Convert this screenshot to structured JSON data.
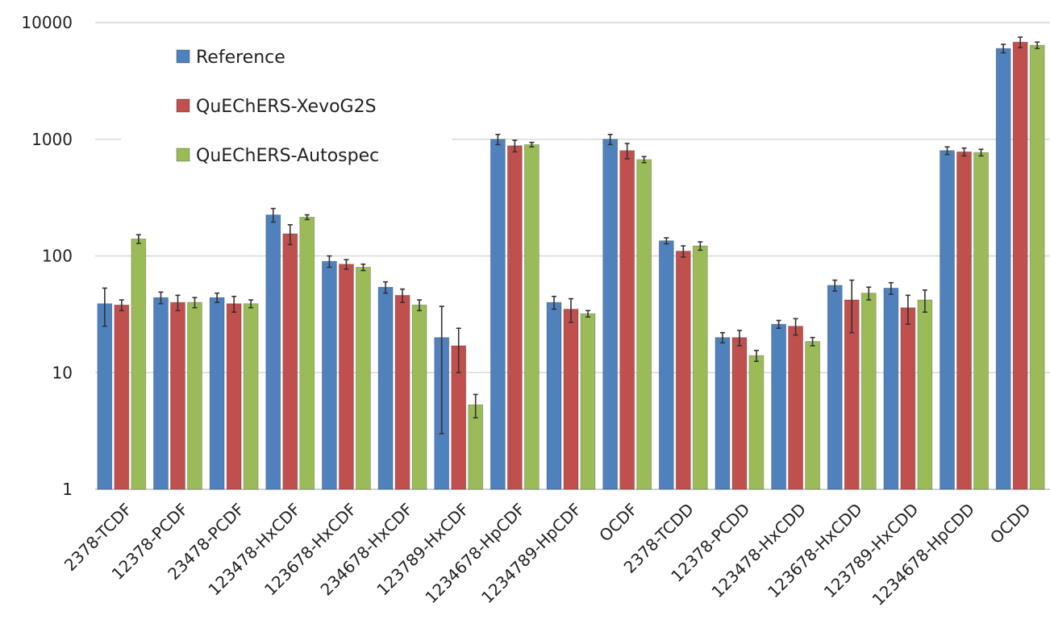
{
  "chart_data": {
    "type": "bar",
    "y_scale": "log",
    "ylim": [
      1,
      10000
    ],
    "y_ticks": [
      1,
      10,
      100,
      1000,
      10000
    ],
    "y_tick_labels": [
      "1",
      "10",
      "100",
      "1000",
      "10000"
    ],
    "grid": true,
    "legend_position": "top-left",
    "categories": [
      "2378-TCDF",
      "12378-PCDF",
      "23478-PCDF",
      "123478-HxCDF",
      "123678-HxCDF",
      "234678-HxCDF",
      "123789-HxCDF",
      "1234678-HpCDF",
      "1234789-HpCDF",
      "OCDF",
      "2378-TCDD",
      "12378-PCDD",
      "123478-HxCDD",
      "123678-HxCDD",
      "123789-HxCDD",
      "1234678-HpCDD",
      "OCDD"
    ],
    "series": [
      {
        "name": "Reference",
        "color": "#4f81bd",
        "values": [
          39,
          44,
          44,
          225,
          90,
          54,
          20,
          1000,
          40,
          1000,
          135,
          20,
          26,
          56,
          53,
          800,
          6000
        ],
        "errors": [
          14,
          5,
          4,
          30,
          10,
          6,
          17,
          100,
          5,
          100,
          8,
          2,
          2,
          6,
          6,
          60,
          500
        ]
      },
      {
        "name": "QuEChERS-XevoG2S",
        "color": "#c0504d",
        "values": [
          38,
          40,
          39,
          155,
          85,
          46,
          17,
          880,
          35,
          800,
          110,
          20,
          25,
          42,
          36,
          780,
          6800
        ],
        "errors": [
          4,
          6,
          6,
          30,
          8,
          6,
          7,
          100,
          8,
          120,
          12,
          3,
          4,
          20,
          10,
          60,
          700
        ]
      },
      {
        "name": "QuEChERS-Autospec",
        "color": "#9bbb59",
        "values": [
          140,
          40,
          39,
          215,
          80,
          38,
          5.3,
          900,
          32,
          670,
          122,
          14,
          18.5,
          48,
          42,
          770,
          6400
        ],
        "errors": [
          12,
          4,
          3,
          10,
          5,
          4,
          1.2,
          40,
          2,
          40,
          10,
          1.5,
          1.5,
          6,
          9,
          50,
          400
        ]
      }
    ]
  }
}
